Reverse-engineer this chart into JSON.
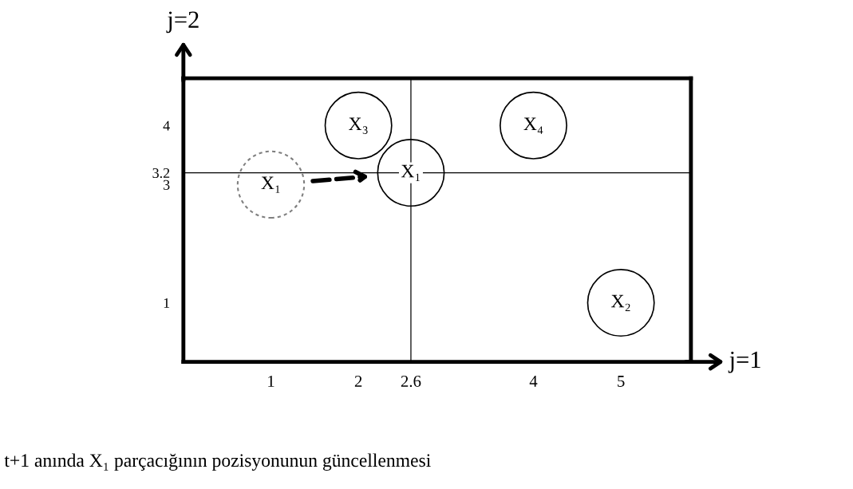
{
  "chart_data": {
    "type": "scatter",
    "xlabel": "j=1",
    "ylabel": "j=2",
    "xlim": [
      0,
      5.8
    ],
    "ylim": [
      0,
      4.8
    ],
    "xticks": [
      1,
      2,
      2.6,
      4,
      5
    ],
    "yticks": [
      1,
      3,
      3.2,
      4
    ],
    "grid": false,
    "marker": "circle",
    "series": [
      {
        "color": "#000000",
        "x": [
          2.6,
          5,
          2,
          4
        ],
        "values": [
          3.2,
          1,
          4,
          4
        ],
        "line_style": "solid"
      },
      {
        "color": "#7f7f7f",
        "x": [
          1
        ],
        "values": [
          3
        ],
        "line_style": "dashed"
      }
    ],
    "ref_lines": [
      {
        "axis": "x",
        "value": 2.6,
        "color": "#000000"
      },
      {
        "axis": "y",
        "value": 3.2,
        "color": "#000000"
      }
    ],
    "annotations": [
      {
        "text": "X₁",
        "x": 2.6,
        "y": 3.2
      },
      {
        "text": "X₂",
        "x": 5,
        "y": 1
      },
      {
        "text": "X₃",
        "x": 2,
        "y": 4
      },
      {
        "text": "X₄",
        "x": 4,
        "y": 4
      },
      {
        "text": "X₁",
        "x": 1,
        "y": 3
      },
      "t+1 anında X₁ parçacığının pozisyonunun güncellenmesi"
    ]
  }
}
